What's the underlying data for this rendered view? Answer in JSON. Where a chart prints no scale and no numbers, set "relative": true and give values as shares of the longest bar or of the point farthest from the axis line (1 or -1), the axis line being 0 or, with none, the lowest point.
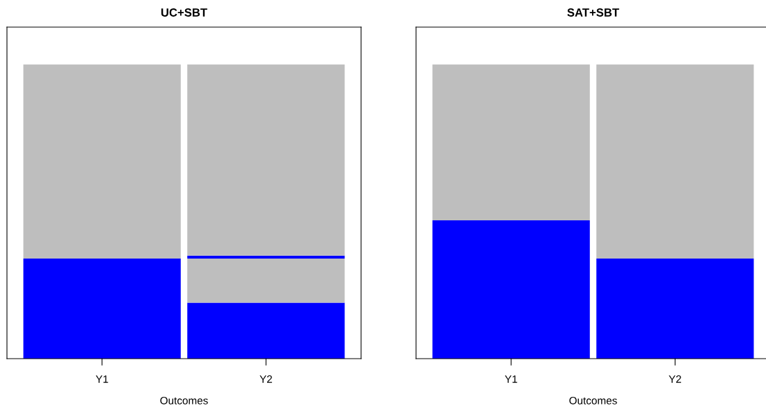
{
  "chart_data": [
    {
      "type": "bar",
      "title": "UC+SBT",
      "xlabel": "Outcomes",
      "categories": [
        "Y1",
        "Y2"
      ],
      "stacked": true,
      "relative": true,
      "grid": false,
      "legend": false,
      "series": [
        {
          "color": "#0000ff",
          "values": [
            0.34,
            0.19
          ]
        },
        {
          "color": "#bebebe",
          "values": [
            0.66,
            0.15
          ]
        },
        {
          "color": "#0000ff",
          "values": [
            null,
            0.01
          ]
        },
        {
          "color": "#bebebe",
          "values": [
            null,
            0.65
          ]
        }
      ]
    },
    {
      "type": "bar",
      "title": "SAT+SBT",
      "xlabel": "Outcomes",
      "categories": [
        "Y1",
        "Y2"
      ],
      "stacked": true,
      "relative": true,
      "grid": false,
      "legend": false,
      "series": [
        {
          "color": "#0000ff",
          "values": [
            0.47,
            0.34
          ]
        },
        {
          "color": "#bebebe",
          "values": [
            0.53,
            0.66
          ]
        }
      ]
    }
  ]
}
